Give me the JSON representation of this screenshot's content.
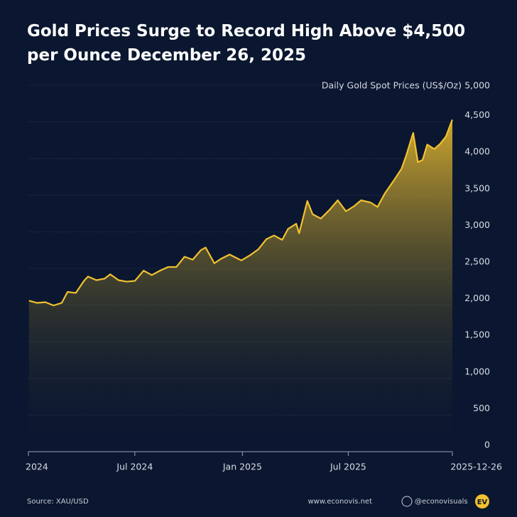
{
  "chart_data": {
    "type": "area",
    "title": "Gold Prices Surge to Record High Above $4,500 per Ounce December 26, 2025",
    "y_label": "Daily Gold Spot Prices (US$/Oz)",
    "source": "Source: XAU/USD",
    "website": "www.econovis.net",
    "social": "@econovisuals",
    "logo": "EV",
    "x": [
      "2024-01-02",
      "2024-01-16",
      "2024-01-30",
      "2024-02-13",
      "2024-02-27",
      "2024-03-08",
      "2024-03-22",
      "2024-04-05",
      "2024-04-12",
      "2024-04-26",
      "2024-05-10",
      "2024-05-20",
      "2024-06-03",
      "2024-06-17",
      "2024-07-01",
      "2024-07-16",
      "2024-07-30",
      "2024-08-13",
      "2024-08-27",
      "2024-09-10",
      "2024-09-24",
      "2024-10-08",
      "2024-10-22",
      "2024-10-30",
      "2024-11-14",
      "2024-11-25",
      "2024-12-10",
      "2024-12-30",
      "2025-01-14",
      "2025-01-28",
      "2025-02-11",
      "2025-02-24",
      "2025-03-10",
      "2025-03-20",
      "2025-04-03",
      "2025-04-08",
      "2025-04-22",
      "2025-05-01",
      "2025-05-15",
      "2025-05-30",
      "2025-06-13",
      "2025-06-27",
      "2025-07-11",
      "2025-07-23",
      "2025-08-08",
      "2025-08-20",
      "2025-09-02",
      "2025-09-16",
      "2025-09-30",
      "2025-10-08",
      "2025-10-20",
      "2025-10-28",
      "2025-11-05",
      "2025-11-13",
      "2025-11-25",
      "2025-12-05",
      "2025-12-15",
      "2025-12-22",
      "2025-12-26"
    ],
    "series": [
      {
        "name": "Gold",
        "color": "#f2c12e",
        "values": [
          2060,
          2030,
          2040,
          1995,
          2030,
          2180,
          2165,
          2330,
          2390,
          2340,
          2360,
          2420,
          2340,
          2320,
          2330,
          2470,
          2410,
          2470,
          2520,
          2520,
          2660,
          2620,
          2750,
          2785,
          2570,
          2630,
          2690,
          2610,
          2680,
          2760,
          2900,
          2950,
          2890,
          3040,
          3110,
          2980,
          3420,
          3240,
          3180,
          3300,
          3430,
          3280,
          3350,
          3430,
          3400,
          3340,
          3530,
          3690,
          3860,
          4040,
          4350,
          3950,
          3980,
          4190,
          4130,
          4200,
          4300,
          4450,
          4530
        ]
      }
    ],
    "xlim": [
      "2024-01-01",
      "2025-12-26"
    ],
    "xticks": [
      {
        "value": "2024-01-01",
        "label": "2024"
      },
      {
        "value": "2024-07-01",
        "label": "Jul 2024"
      },
      {
        "value": "2025-01-01",
        "label": "Jan 2025"
      },
      {
        "value": "2025-07-01",
        "label": "Jul 2025"
      },
      "2025-12-26"
    ],
    "ylim": [
      0,
      5000
    ],
    "yticks": [
      0,
      500,
      {
        "value": 1000,
        "label": "1,000"
      },
      {
        "value": 1500,
        "label": "1,500"
      },
      {
        "value": 2000,
        "label": "2,000"
      },
      {
        "value": 2500,
        "label": "2,500"
      },
      {
        "value": 3000,
        "label": "3,000"
      },
      {
        "value": 3500,
        "label": "3,500"
      },
      {
        "value": 4000,
        "label": "4,000"
      },
      {
        "value": 4500,
        "label": "4,500"
      },
      {
        "value": 5000,
        "label": "5,000"
      }
    ],
    "grid": true
  }
}
